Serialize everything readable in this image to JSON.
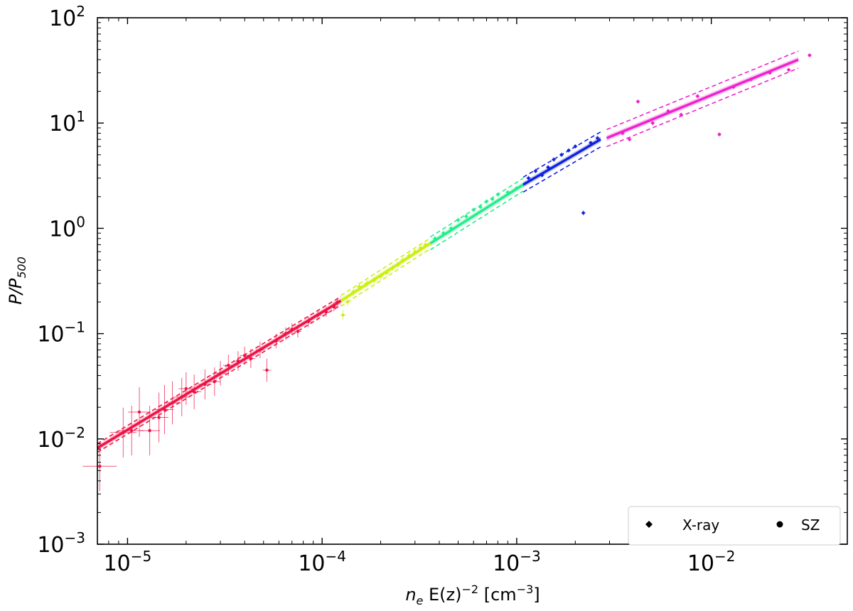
{
  "chart_data": {
    "type": "scatter",
    "xscale": "log",
    "yscale": "log",
    "xlim": [
      7e-06,
      0.05
    ],
    "ylim": [
      0.001,
      100
    ],
    "grid": false,
    "xlabel": {
      "base": "n",
      "sub": "e",
      "mid": " E(z)",
      "sup": "−2",
      "unit_open": " [cm",
      "unit_sup": "−3",
      "unit_close": "]"
    },
    "ylabel": {
      "base": "P/P",
      "sub": "500"
    },
    "xticks": [
      {
        "value": 1e-05,
        "base": "10",
        "exp": "−5"
      },
      {
        "value": 0.0001,
        "base": "10",
        "exp": "−4"
      },
      {
        "value": 0.001,
        "base": "10",
        "exp": "−3"
      },
      {
        "value": 0.01,
        "base": "10",
        "exp": "−2"
      }
    ],
    "yticks": [
      {
        "value": 0.001,
        "base": "10",
        "exp": "−3"
      },
      {
        "value": 0.01,
        "base": "10",
        "exp": "−2"
      },
      {
        "value": 0.1,
        "base": "10",
        "exp": "−1"
      },
      {
        "value": 1,
        "base": "10",
        "exp": "0"
      },
      {
        "value": 10,
        "base": "10",
        "exp": "1"
      },
      {
        "value": 100,
        "base": "10",
        "exp": "2"
      }
    ],
    "legend": {
      "position": "lower-right",
      "entries": [
        {
          "label": "X-ray",
          "marker": "diamond"
        },
        {
          "label": "SZ",
          "marker": "circle"
        }
      ]
    },
    "series": [
      {
        "color": "#ee1144",
        "fit": {
          "x_range": [
            7e-06,
            0.000125
          ],
          "y_range": [
            0.0082,
            0.205
          ]
        },
        "points": [
          [
            7.2e-06,
            0.0055
          ],
          [
            9.5e-06,
            0.0115
          ],
          [
            1.05e-05,
            0.012
          ],
          [
            1.15e-05,
            0.018
          ],
          [
            1.3e-05,
            0.012
          ],
          [
            1.45e-05,
            0.016
          ],
          [
            1.55e-05,
            0.019
          ],
          [
            1.7e-05,
            0.022
          ],
          [
            1.9e-05,
            0.025
          ],
          [
            2e-05,
            0.03
          ],
          [
            2.2e-05,
            0.028
          ],
          [
            2.5e-05,
            0.033
          ],
          [
            2.8e-05,
            0.035
          ],
          [
            3e-05,
            0.042
          ],
          [
            3.3e-05,
            0.05
          ],
          [
            3.7e-05,
            0.055
          ],
          [
            4e-05,
            0.062
          ],
          [
            4.3e-05,
            0.058
          ],
          [
            4.8e-05,
            0.07
          ],
          [
            5.2e-05,
            0.045
          ],
          [
            5.8e-05,
            0.085
          ],
          [
            6.5e-05,
            0.1
          ],
          [
            7e-05,
            0.11
          ],
          [
            7.5e-05,
            0.105
          ],
          [
            8.5e-05,
            0.13
          ],
          [
            9.5e-05,
            0.15
          ],
          [
            0.000105,
            0.16
          ],
          [
            0.000115,
            0.18
          ],
          [
            0.00012,
            0.2
          ]
        ]
      },
      {
        "color": "#ccee11",
        "fit": {
          "x_range": [
            0.000125,
            0.00036
          ],
          "y_range": [
            0.205,
            0.72
          ]
        },
        "points": [
          [
            0.000128,
            0.15
          ],
          [
            0.000135,
            0.2
          ],
          [
            0.000145,
            0.25
          ],
          [
            0.000155,
            0.28
          ],
          [
            0.00017,
            0.3
          ],
          [
            0.000185,
            0.32
          ],
          [
            0.0002,
            0.35
          ],
          [
            0.000215,
            0.38
          ],
          [
            0.00023,
            0.42
          ],
          [
            0.000245,
            0.45
          ],
          [
            0.00026,
            0.5
          ],
          [
            0.00028,
            0.55
          ],
          [
            0.0003,
            0.6
          ],
          [
            0.00032,
            0.65
          ],
          [
            0.00034,
            0.7
          ]
        ]
      },
      {
        "color": "#22ee88",
        "fit": {
          "x_range": [
            0.00036,
            0.00108
          ],
          "y_range": [
            0.72,
            2.6
          ]
        },
        "points": [
          [
            0.00038,
            0.8
          ],
          [
            0.00042,
            0.9
          ],
          [
            0.00046,
            1.0
          ],
          [
            0.0005,
            1.2
          ],
          [
            0.00055,
            1.3
          ],
          [
            0.0006,
            1.5
          ],
          [
            0.00065,
            1.6
          ],
          [
            0.0007,
            1.8
          ],
          [
            0.00075,
            1.9
          ],
          [
            0.0008,
            2.1
          ],
          [
            0.0009,
            2.2
          ],
          [
            0.001,
            2.4
          ]
        ]
      },
      {
        "color": "#1122dd",
        "fit": {
          "x_range": [
            0.00108,
            0.0027
          ],
          "y_range": [
            2.6,
            7.0
          ]
        },
        "points": [
          [
            0.00115,
            3.0
          ],
          [
            0.00125,
            3.5
          ],
          [
            0.00135,
            3.2
          ],
          [
            0.00145,
            3.8
          ],
          [
            0.00155,
            4.5
          ],
          [
            0.0017,
            5.0
          ],
          [
            0.00185,
            5.5
          ],
          [
            0.002,
            6.0
          ],
          [
            0.0022,
            1.4
          ],
          [
            0.0024,
            6.5
          ],
          [
            0.0026,
            7.2
          ]
        ]
      },
      {
        "color": "#ee22cc",
        "fit": {
          "x_range": [
            0.0029,
            0.028
          ],
          "y_range": [
            7.2,
            40.0
          ]
        },
        "points": [
          [
            0.0035,
            8.0
          ],
          [
            0.0038,
            7.0
          ],
          [
            0.0042,
            16.0
          ],
          [
            0.005,
            10.0
          ],
          [
            0.006,
            13.0
          ],
          [
            0.007,
            12.0
          ],
          [
            0.0085,
            18.0
          ],
          [
            0.011,
            7.8
          ],
          [
            0.013,
            22.0
          ],
          [
            0.016,
            26.0
          ],
          [
            0.02,
            30.0
          ],
          [
            0.025,
            32.0
          ],
          [
            0.032,
            44.0
          ]
        ]
      }
    ]
  }
}
